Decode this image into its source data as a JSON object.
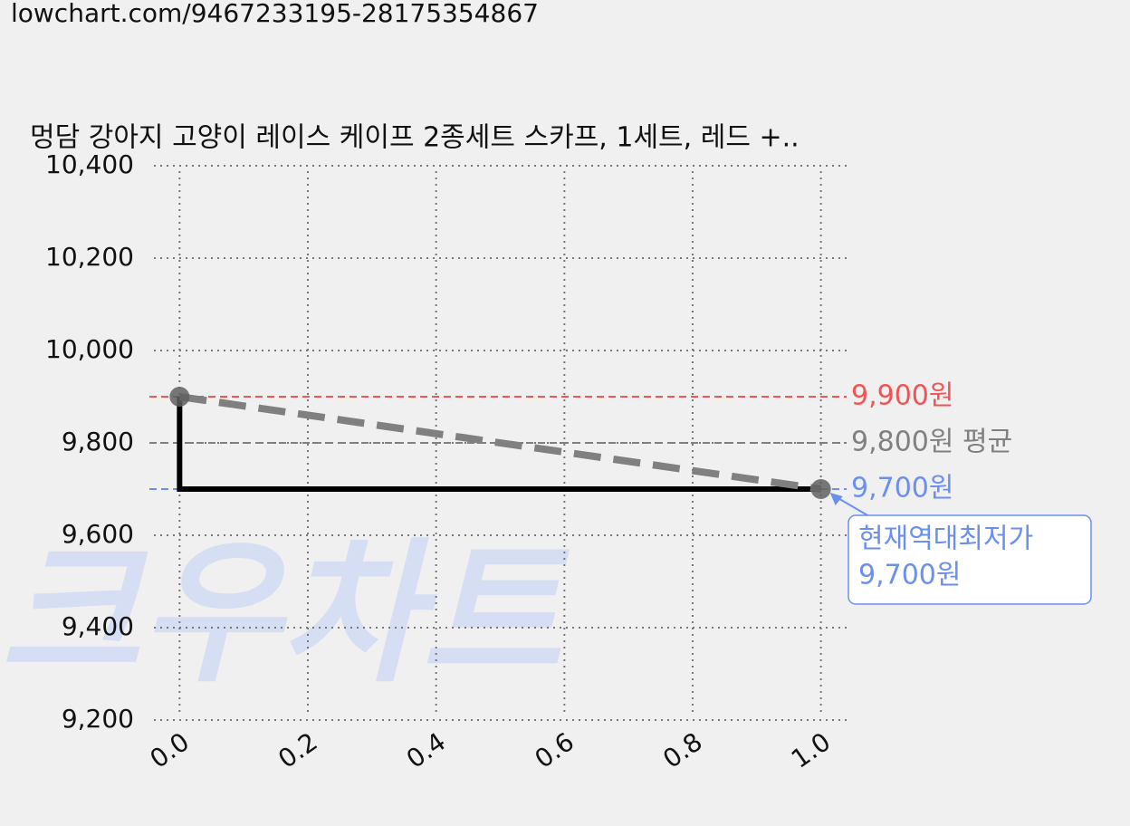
{
  "url": "lowchart.com/9467233195-28175354867",
  "watermark": "크우차트",
  "chart_data": {
    "type": "line",
    "title": "멍담 강아지 고양이 레이스 케이프 2종세트 스카프, 1세트, 레드 +..",
    "xlim": [
      -0.04,
      1.04
    ],
    "ylim": [
      9200,
      10400
    ],
    "xticks": [
      {
        "value": 0,
        "label": "0.0"
      },
      {
        "value": 0.2,
        "label": "0.2"
      },
      {
        "value": 0.4,
        "label": "0.4"
      },
      {
        "value": 0.6,
        "label": "0.6"
      },
      {
        "value": 0.8,
        "label": "0.8"
      },
      {
        "value": 1,
        "label": "1.0"
      }
    ],
    "yticks": [
      {
        "value": 9200,
        "label": "9,200"
      },
      {
        "value": 9400,
        "label": "9,400"
      },
      {
        "value": 9600,
        "label": "9,600"
      },
      {
        "value": 9800,
        "label": "9,800"
      },
      {
        "value": 10000,
        "label": "10,000"
      },
      {
        "value": 10200,
        "label": "10,200"
      },
      {
        "value": 10400,
        "label": "10,400"
      }
    ],
    "grid": true,
    "series": [
      {
        "color": "#000000",
        "style": "solid",
        "x": [
          0,
          0,
          1
        ],
        "values": [
          9900,
          9700,
          9700
        ]
      },
      {
        "color": "#808080",
        "style": "dashed",
        "x": [
          0,
          1
        ],
        "values": [
          9900,
          9700
        ]
      }
    ],
    "points": {
      "color": "#606060",
      "x": [
        0,
        1
      ],
      "values": [
        9900,
        9700
      ]
    },
    "hlines": [
      {
        "value": 9900,
        "label": "9,900원",
        "color": "#f05454"
      },
      {
        "value": 9800,
        "label": "9,800원 평균",
        "color": "#808080"
      },
      {
        "value": 9700,
        "label": "9,700원",
        "color": "#6b8ff0"
      }
    ],
    "annotation": {
      "lines": [
        "현재역대최저가",
        "9,700원"
      ],
      "color": "#6b8ff0"
    }
  }
}
